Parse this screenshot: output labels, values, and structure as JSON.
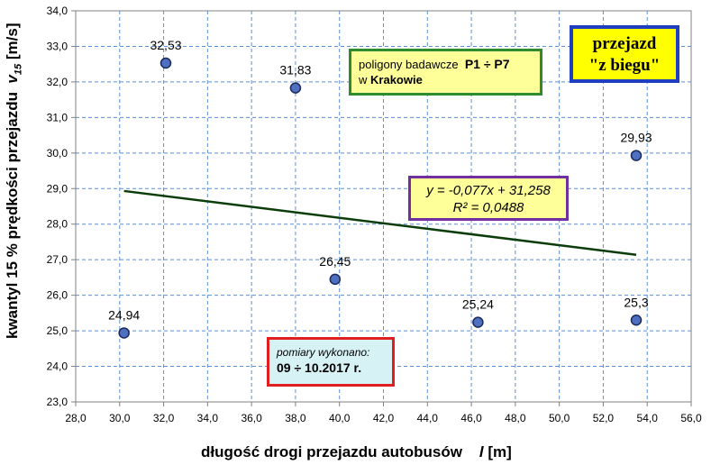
{
  "chart_data": {
    "type": "scatter",
    "x_axis": {
      "label": "długość drogi przejazdu autobusów",
      "symbol": "l",
      "unit": "[m]",
      "range": [
        28.0,
        56.0
      ],
      "ticks": [
        "28,0",
        "30,0",
        "32,0",
        "34,0",
        "36,0",
        "38,0",
        "40,0",
        "42,0",
        "44,0",
        "46,0",
        "48,0",
        "50,0",
        "52,0",
        "54,0",
        "56,0"
      ]
    },
    "y_axis": {
      "label": "kwantyl 15 % prędkości przejazdu",
      "symbol": "v",
      "subscript": "15",
      "unit": "[m/s]",
      "range": [
        23.0,
        34.0
      ],
      "ticks": [
        "23,0",
        "24,0",
        "25,0",
        "26,0",
        "27,0",
        "28,0",
        "29,0",
        "30,0",
        "31,0",
        "32,0",
        "33,0",
        "34,0"
      ]
    },
    "grid": true,
    "points": [
      {
        "x": 30.2,
        "y": 24.94,
        "label": "24,94"
      },
      {
        "x": 32.1,
        "y": 32.53,
        "label": "32,53"
      },
      {
        "x": 38.0,
        "y": 31.83,
        "label": "31,83"
      },
      {
        "x": 39.8,
        "y": 26.45,
        "label": "26,45"
      },
      {
        "x": 46.3,
        "y": 25.24,
        "label": "25,24"
      },
      {
        "x": 53.5,
        "y": 29.93,
        "label": "29,93"
      },
      {
        "x": 53.5,
        "y": 25.3,
        "label": "25,3"
      }
    ],
    "trendline": {
      "slope": -0.077,
      "intercept": 31.258,
      "x_from": 30.2,
      "x_to": 53.5
    },
    "colors": {
      "point_fill": "#4f6fc0",
      "point_stroke": "#1a2a5a",
      "trend": "#0b3d0b",
      "grid": "#5b8fd6"
    }
  },
  "annotations": {
    "area_line1_prefix": "poligony badawcze",
    "area_line1_bold": "P1 ÷ P7",
    "area_line2_prefix": "w",
    "area_line2_bold": "Krakowie",
    "mode_line1": "przejazd",
    "mode_line2": "\"z biegu\"",
    "equation": "y = -0,077x + 31,258",
    "r2": "R² = 0,0488",
    "date_line1": "pomiary wykonano:",
    "date_line2": "09 ÷ 10.2017 r."
  }
}
